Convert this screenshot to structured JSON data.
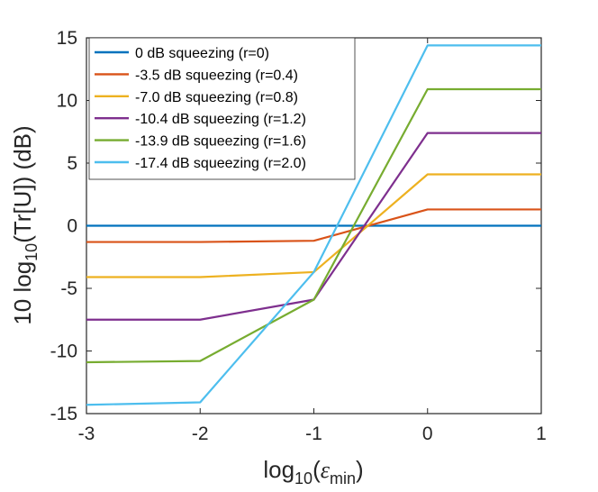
{
  "chart_data": {
    "type": "line",
    "title": "",
    "xlabel": {
      "base": "log",
      "sub1": "10",
      "open": "(",
      "symbol": "ε",
      "sub2": "min",
      "close": ")"
    },
    "ylabel": {
      "pre": "10 log",
      "sub": "10",
      "post": "(Tr[U]) (dB)"
    },
    "xlim": [
      -3,
      1
    ],
    "ylim": [
      -15,
      15
    ],
    "xticks": [
      -3,
      -2,
      -1,
      0,
      1
    ],
    "yticks": [
      -15,
      -10,
      -5,
      0,
      5,
      10,
      15
    ],
    "xtick_labels": [
      "-3",
      "-2",
      "-1",
      "0",
      "1"
    ],
    "ytick_labels": [
      "-15",
      "-10",
      "-5",
      "0",
      "5",
      "10",
      "15"
    ],
    "grid": false,
    "legend_position": "top-left",
    "x": [
      -3,
      -2,
      -1,
      0,
      1
    ],
    "series": [
      {
        "name": "0 dB squeezing (r=0)",
        "color": "#0072BD",
        "values": [
          0,
          0,
          0,
          0,
          0
        ]
      },
      {
        "name": "-3.5 dB squeezing (r=0.4)",
        "color": "#D95319",
        "values": [
          -1.3,
          -1.3,
          -1.2,
          1.3,
          1.3
        ]
      },
      {
        "name": "-7.0 dB squeezing (r=0.8)",
        "color": "#EDB120",
        "values": [
          -4.1,
          -4.1,
          -3.7,
          4.1,
          4.1
        ]
      },
      {
        "name": "-10.4 dB squeezing (r=1.2)",
        "color": "#7E2F8E",
        "values": [
          -7.5,
          -7.5,
          -5.9,
          7.4,
          7.4
        ]
      },
      {
        "name": "-13.9 dB squeezing (r=1.6)",
        "color": "#77AC30",
        "values": [
          -10.9,
          -10.8,
          -5.9,
          10.9,
          10.9
        ]
      },
      {
        "name": "-17.4 dB squeezing (r=2.0)",
        "color": "#4DBEEE",
        "values": [
          -14.3,
          -14.1,
          -3.7,
          14.4,
          14.4
        ]
      }
    ]
  }
}
